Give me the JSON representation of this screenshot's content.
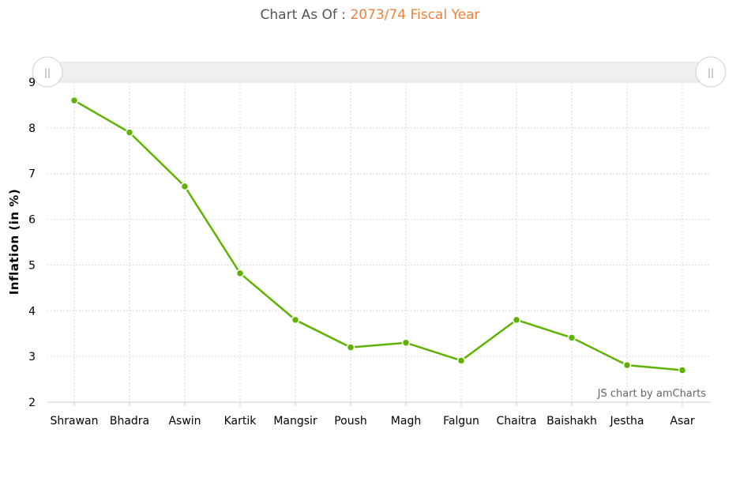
{
  "header": {
    "prefix": "Chart As Of : ",
    "period": "2073/74 Fiscal Year"
  },
  "credit": "JS chart by amCharts",
  "colors": {
    "line": "#5fb300",
    "header_highlight": "#f07f3c",
    "grid": "#d9d9d9"
  },
  "chart_data": {
    "type": "line",
    "categories": [
      "Shrawan",
      "Bhadra",
      "Aswin",
      "Kartik",
      "Mangsir",
      "Poush",
      "Magh",
      "Falgun",
      "Chaitra",
      "Baishakh",
      "Jestha",
      "Asar"
    ],
    "series": [
      {
        "values": [
          8.6,
          7.9,
          6.72,
          4.82,
          3.8,
          3.2,
          3.3,
          2.91,
          3.8,
          3.41,
          2.81,
          2.7
        ]
      }
    ],
    "title": "",
    "xlabel": "",
    "ylabel": "Inflation (in %)",
    "ylim": [
      2,
      9
    ],
    "yticks": [
      "2",
      "3",
      "4",
      "5",
      "6",
      "7",
      "8",
      "9"
    ],
    "grid": true,
    "scrollbar": true,
    "scrollbar_handle_icon": "grip-lines-icon",
    "scrollbar_handle_glyph": "||"
  }
}
